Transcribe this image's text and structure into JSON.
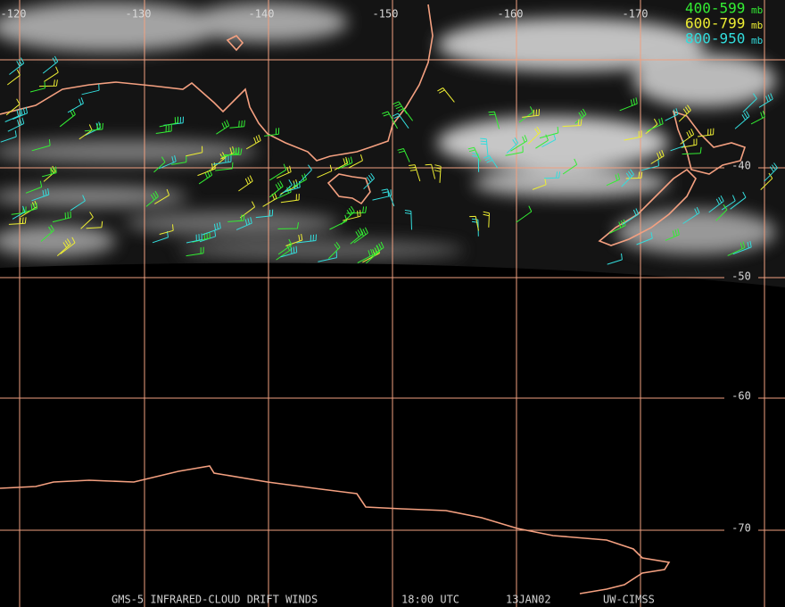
{
  "map": {
    "longitude_labels": [
      "-120",
      "-130",
      "-140",
      "-150",
      "-160",
      "-170"
    ],
    "latitude_labels": [
      "-40",
      "-50",
      "-60",
      "-70"
    ],
    "legend": [
      {
        "range": "400-599",
        "unit": "mb"
      },
      {
        "range": "600-799",
        "unit": "mb"
      },
      {
        "range": "800-950",
        "unit": "mb"
      }
    ],
    "footer": {
      "product": "GMS-5 INFRARED-CLOUD DRIFT WINDS",
      "time": "18:00 UTC",
      "date": "13JAN02",
      "source": "UW-CIMSS"
    }
  }
}
